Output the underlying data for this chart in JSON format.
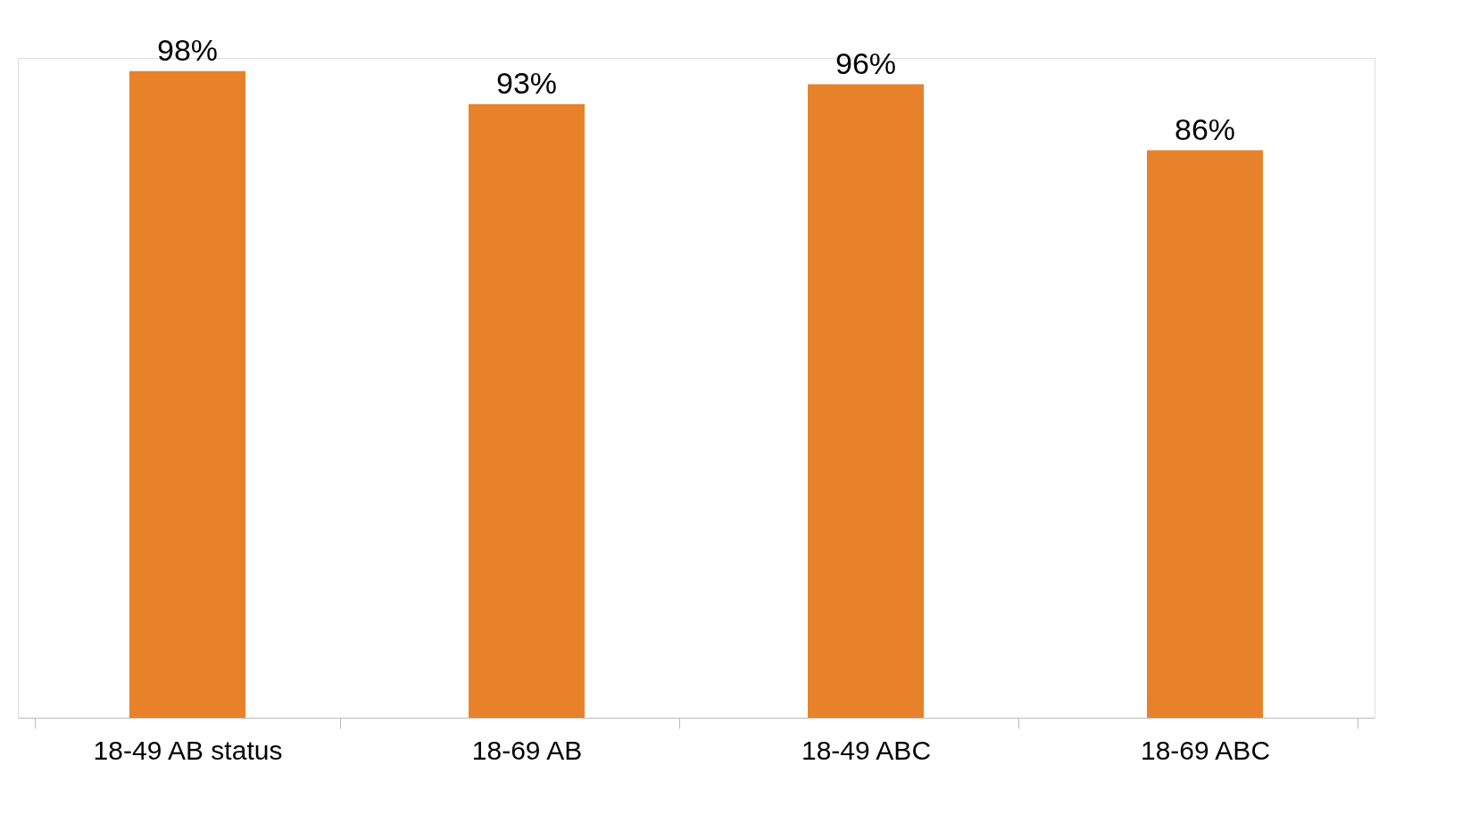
{
  "chart_data": {
    "type": "bar",
    "categories": [
      "18-49 AB status",
      "18-69 AB",
      "18-49 ABC",
      "18-69 ABC"
    ],
    "values": [
      98,
      93,
      96,
      86
    ],
    "value_labels": [
      "98%",
      "93%",
      "96%",
      "86%"
    ],
    "color": "#e8822a",
    "tick_labels": "x",
    "grid": false
  }
}
